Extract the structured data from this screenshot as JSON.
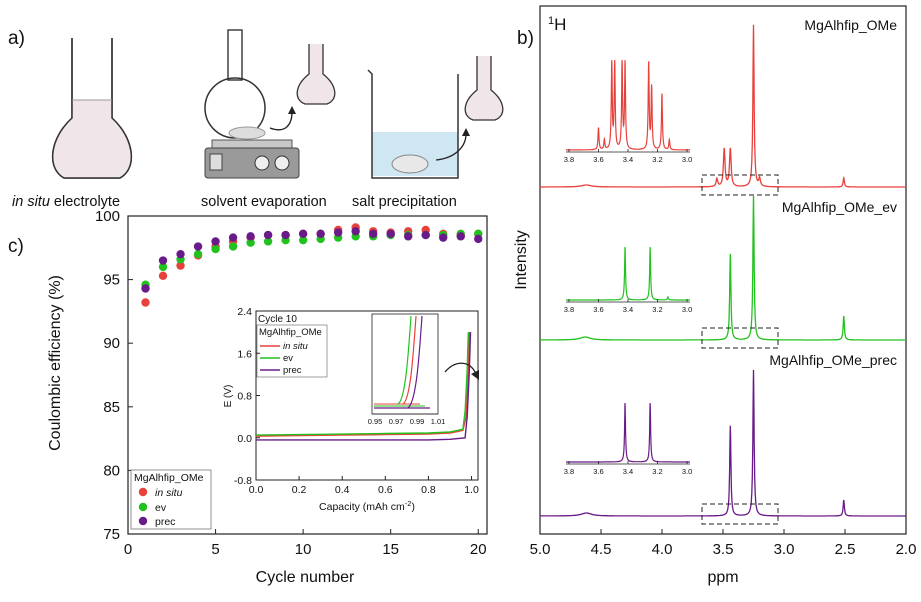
{
  "panel_a": {
    "label": "a)",
    "captions": {
      "in_situ_italic": "in situ",
      "in_situ_rest": " electrolyte",
      "evaporation": "solvent evaporation",
      "precipitation": "salt precipitation"
    }
  },
  "colors": {
    "in_situ": "#e8413c",
    "ev": "#22c21e",
    "prec": "#6a1b8a"
  },
  "chart_data": [
    {
      "id": "c",
      "type": "scatter",
      "panel_label": "c)",
      "xlabel": "Cycle number",
      "ylabel": "Coulombic efficiency (%)",
      "xlim": [
        0,
        20.5
      ],
      "ylim": [
        75,
        100
      ],
      "xticks": [
        0,
        5,
        10,
        15,
        20
      ],
      "yticks": [
        75,
        80,
        85,
        90,
        95,
        100
      ],
      "legend": {
        "title": "MgAlhfip_OMe",
        "position": "bottom-left"
      },
      "series": [
        {
          "name": "in situ",
          "x": [
            1,
            2,
            3,
            4,
            5,
            6,
            7,
            8,
            9,
            10,
            11,
            12,
            13,
            14,
            15,
            16,
            17,
            18,
            19,
            20
          ],
          "values": [
            93.2,
            95.3,
            96.1,
            96.9,
            97.6,
            98.0,
            98.3,
            98.5,
            98.5,
            98.6,
            98.6,
            98.9,
            99.1,
            98.8,
            98.7,
            98.8,
            98.9,
            98.6,
            98.5,
            98.6
          ]
        },
        {
          "name": "ev",
          "x": [
            1,
            2,
            3,
            4,
            5,
            6,
            7,
            8,
            9,
            10,
            11,
            12,
            13,
            14,
            15,
            16,
            17,
            18,
            19,
            20
          ],
          "values": [
            94.6,
            96.0,
            96.6,
            97.0,
            97.4,
            97.6,
            97.9,
            98.0,
            98.1,
            98.1,
            98.2,
            98.3,
            98.4,
            98.4,
            98.5,
            98.5,
            98.5,
            98.5,
            98.6,
            98.6
          ]
        },
        {
          "name": "prec",
          "x": [
            1,
            2,
            3,
            4,
            5,
            6,
            7,
            8,
            9,
            10,
            11,
            12,
            13,
            14,
            15,
            16,
            17,
            18,
            19,
            20
          ],
          "values": [
            94.3,
            96.5,
            97.0,
            97.6,
            98.0,
            98.3,
            98.4,
            98.5,
            98.5,
            98.6,
            98.6,
            98.7,
            98.8,
            98.6,
            98.6,
            98.4,
            98.5,
            98.3,
            98.4,
            98.2
          ]
        }
      ]
    },
    {
      "id": "c_inset",
      "type": "line",
      "annotation": "Cycle 10",
      "xlabel": "Capacity (mAh cm",
      "xlabel_sup": "-2",
      "ylabel": "E (V)",
      "xlim": [
        0,
        1.03
      ],
      "ylim": [
        -0.8,
        2.4
      ],
      "xticks": [
        0.0,
        0.2,
        0.4,
        0.6,
        0.8,
        1.0
      ],
      "xtick_labels": [
        "0.0",
        "0.2",
        "0.4",
        "0.6",
        "0.8",
        "1.0"
      ],
      "yticks": [
        -0.8,
        0.0,
        0.8,
        1.6,
        2.4
      ],
      "ytick_labels": [
        "-0.8",
        "0.0",
        "0.8",
        "1.6",
        "2.4"
      ],
      "legend": {
        "title": "MgAlhfip_OMe",
        "position": "top-left"
      },
      "series": [
        {
          "name": "in situ",
          "x": [
            0,
            0.2,
            0.4,
            0.6,
            0.8,
            0.9,
            0.96,
            0.975,
            0.985,
            0.99
          ],
          "values": [
            0.03,
            0.04,
            0.05,
            0.06,
            0.07,
            0.09,
            0.14,
            0.4,
            1.2,
            2.0
          ]
        },
        {
          "name": "ev",
          "x": [
            0,
            0.2,
            0.4,
            0.6,
            0.8,
            0.9,
            0.96,
            0.97,
            0.98,
            0.985
          ],
          "values": [
            0.05,
            0.06,
            0.07,
            0.08,
            0.09,
            0.11,
            0.16,
            0.5,
            1.3,
            2.0
          ]
        },
        {
          "name": "prec",
          "x": [
            0,
            0.2,
            0.4,
            0.6,
            0.8,
            0.9,
            0.97,
            0.98,
            0.99,
            0.995
          ],
          "values": [
            -0.04,
            -0.04,
            -0.04,
            -0.04,
            -0.04,
            -0.03,
            0.0,
            0.4,
            1.3,
            2.0
          ]
        }
      ],
      "zoom_inset": {
        "xticks_labels": [
          "0.95",
          "0.97",
          "0.99",
          "1.01"
        ]
      }
    },
    {
      "id": "b",
      "type": "line",
      "panel_label": "b)",
      "nucleus_sup": "1",
      "nucleus": "H",
      "xlabel": "ppm",
      "ylabel": "Intensity",
      "xlim": [
        5.0,
        2.0
      ],
      "xticks": [
        5.0,
        4.5,
        4.0,
        3.5,
        3.0,
        2.5,
        2.0
      ],
      "xtick_labels": [
        "5.0",
        "4.5",
        "4.0",
        "3.5",
        "3.0",
        "2.5",
        "2.0"
      ],
      "inset_xtick_labels": [
        "3.8",
        "3.6",
        "3.4",
        "3.2",
        "3.0"
      ],
      "series": [
        {
          "name": "MgAlhfip_OMe",
          "peaks_ppm": [
            3.49,
            3.44,
            3.25,
            2.51,
            4.62
          ]
        },
        {
          "name": "MgAlhfip_OMe_ev",
          "peaks_ppm": [
            3.44,
            3.25,
            2.51
          ]
        },
        {
          "name": "MgAlhfip_OMe_prec",
          "peaks_ppm": [
            3.44,
            3.25,
            2.51
          ]
        }
      ]
    }
  ]
}
